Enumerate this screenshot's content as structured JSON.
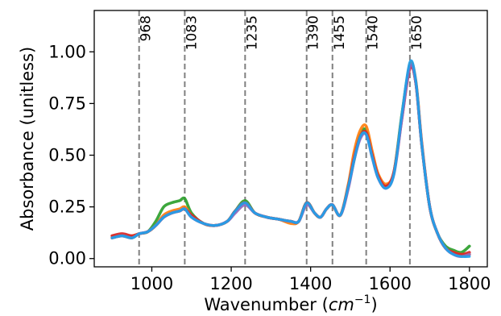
{
  "chart_data": {
    "type": "line",
    "title": "",
    "xlabel": "Wavenumber",
    "xlabel_unit": "cm",
    "xlabel_unit_exp": "−1",
    "ylabel": "Absorbance (unitless)",
    "xlim": [
      855,
      1845
    ],
    "ylim": [
      -0.04,
      1.2
    ],
    "x_ticks": [
      1000,
      1200,
      1400,
      1600,
      1800
    ],
    "x_tick_labels": [
      "1000",
      "1200",
      "1400",
      "1600",
      "1800"
    ],
    "y_ticks": [
      0.0,
      0.25,
      0.5,
      0.75,
      1.0
    ],
    "y_tick_labels": [
      "0.00",
      "0.25",
      "0.50",
      "0.75",
      "1.00"
    ],
    "grid": false,
    "reference_lines": [
      {
        "x": 968,
        "label": "968"
      },
      {
        "x": 1083,
        "label": "1083"
      },
      {
        "x": 1235,
        "label": "1235"
      },
      {
        "x": 1390,
        "label": "1390"
      },
      {
        "x": 1455,
        "label": "1455"
      },
      {
        "x": 1540,
        "label": "1540"
      },
      {
        "x": 1650,
        "label": "1650"
      }
    ],
    "reference_line_color": "#808080",
    "x": [
      900,
      925,
      950,
      968,
      990,
      1010,
      1030,
      1050,
      1070,
      1083,
      1100,
      1130,
      1160,
      1190,
      1210,
      1235,
      1260,
      1290,
      1320,
      1350,
      1370,
      1390,
      1410,
      1425,
      1440,
      1455,
      1475,
      1495,
      1510,
      1525,
      1540,
      1555,
      1570,
      1590,
      1610,
      1630,
      1650,
      1665,
      1680,
      1700,
      1720,
      1740,
      1760,
      1780,
      1800
    ],
    "series": [
      {
        "color": "#2ca02c",
        "values": [
          0.1,
          0.11,
          0.1,
          0.12,
          0.13,
          0.18,
          0.25,
          0.27,
          0.28,
          0.29,
          0.22,
          0.17,
          0.16,
          0.18,
          0.23,
          0.28,
          0.22,
          0.2,
          0.19,
          0.18,
          0.18,
          0.27,
          0.22,
          0.2,
          0.24,
          0.26,
          0.21,
          0.35,
          0.48,
          0.6,
          0.62,
          0.5,
          0.4,
          0.35,
          0.42,
          0.7,
          0.93,
          0.85,
          0.55,
          0.25,
          0.12,
          0.06,
          0.04,
          0.03,
          0.06
        ]
      },
      {
        "color": "#ff7f0e",
        "values": [
          0.11,
          0.11,
          0.11,
          0.12,
          0.13,
          0.16,
          0.21,
          0.23,
          0.24,
          0.25,
          0.21,
          0.17,
          0.16,
          0.18,
          0.23,
          0.27,
          0.22,
          0.2,
          0.19,
          0.17,
          0.18,
          0.27,
          0.22,
          0.2,
          0.24,
          0.26,
          0.21,
          0.36,
          0.52,
          0.62,
          0.64,
          0.52,
          0.41,
          0.36,
          0.42,
          0.69,
          0.94,
          0.86,
          0.56,
          0.25,
          0.12,
          0.05,
          0.03,
          0.02,
          0.02
        ]
      },
      {
        "color": "#d62728",
        "values": [
          0.11,
          0.12,
          0.11,
          0.12,
          0.13,
          0.16,
          0.2,
          0.22,
          0.23,
          0.24,
          0.21,
          0.17,
          0.16,
          0.18,
          0.23,
          0.27,
          0.22,
          0.2,
          0.19,
          0.18,
          0.18,
          0.27,
          0.22,
          0.2,
          0.24,
          0.26,
          0.21,
          0.35,
          0.49,
          0.59,
          0.61,
          0.5,
          0.4,
          0.35,
          0.42,
          0.68,
          0.92,
          0.85,
          0.55,
          0.25,
          0.12,
          0.05,
          0.03,
          0.02,
          0.03
        ]
      },
      {
        "color": "#9467bd",
        "values": [
          0.1,
          0.11,
          0.1,
          0.12,
          0.13,
          0.16,
          0.2,
          0.22,
          0.23,
          0.24,
          0.2,
          0.17,
          0.16,
          0.18,
          0.22,
          0.26,
          0.22,
          0.2,
          0.19,
          0.18,
          0.18,
          0.26,
          0.22,
          0.2,
          0.24,
          0.26,
          0.21,
          0.34,
          0.48,
          0.58,
          0.6,
          0.49,
          0.39,
          0.34,
          0.41,
          0.68,
          0.93,
          0.85,
          0.55,
          0.25,
          0.12,
          0.05,
          0.02,
          0.01,
          0.02
        ]
      },
      {
        "color": "#1f9fe8",
        "values": [
          0.1,
          0.11,
          0.1,
          0.12,
          0.13,
          0.16,
          0.2,
          0.22,
          0.23,
          0.24,
          0.2,
          0.17,
          0.16,
          0.18,
          0.23,
          0.27,
          0.22,
          0.2,
          0.19,
          0.18,
          0.18,
          0.27,
          0.22,
          0.2,
          0.24,
          0.26,
          0.21,
          0.35,
          0.48,
          0.59,
          0.6,
          0.49,
          0.39,
          0.34,
          0.41,
          0.7,
          0.95,
          0.86,
          0.55,
          0.25,
          0.12,
          0.05,
          0.02,
          0.01,
          0.01
        ]
      }
    ]
  }
}
